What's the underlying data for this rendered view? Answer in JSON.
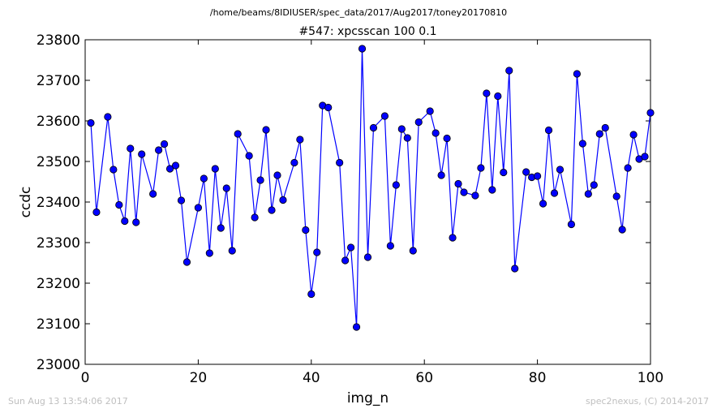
{
  "header": {
    "suptitle": "/home/beams/8IDIUSER/spec_data/2017/Aug2017/toney20170810"
  },
  "footer": {
    "left": "Sun Aug 13 13:54:06 2017",
    "right": "spec2nexus, (C) 2014-2017"
  },
  "colors": {
    "series": "#0000ff",
    "marker_fill": "#0000ff",
    "marker_edge": "#000000",
    "footer_text": "#bfbfbf"
  },
  "chart_data": {
    "type": "line",
    "title": "#547: xpcsscan 100 0.1",
    "xlabel": "img_n",
    "ylabel": "ccdc",
    "xlim": [
      0,
      100
    ],
    "ylim": [
      23000,
      23800
    ],
    "xticks": [
      0,
      20,
      40,
      60,
      80,
      100
    ],
    "yticks": [
      23000,
      23100,
      23200,
      23300,
      23400,
      23500,
      23600,
      23700,
      23800
    ],
    "grid": false,
    "series": [
      {
        "marker": "circle",
        "x": [
          1,
          2,
          4,
          5,
          6,
          7,
          8,
          9,
          10,
          12,
          13,
          14,
          15,
          16,
          17,
          18,
          20,
          21,
          22,
          23,
          24,
          25,
          26,
          27,
          29,
          30,
          31,
          32,
          33,
          34,
          35,
          37,
          38,
          39,
          40,
          41,
          42,
          43,
          45,
          46,
          47,
          48,
          49,
          50,
          51,
          53,
          54,
          55,
          56,
          57,
          58,
          59,
          61,
          62,
          63,
          64,
          65,
          66,
          67,
          69,
          70,
          71,
          72,
          73,
          74,
          75,
          76,
          78,
          79,
          80,
          81,
          82,
          83,
          84,
          86,
          87,
          88,
          89,
          90,
          91,
          92,
          94,
          95,
          96,
          97,
          98,
          99,
          100
        ],
        "y": [
          23595,
          23375,
          23610,
          23480,
          23393,
          23353,
          23532,
          23350,
          23518,
          23420,
          23528,
          23543,
          23482,
          23490,
          23404,
          23252,
          23386,
          23458,
          23274,
          23482,
          23336,
          23434,
          23280,
          23568,
          23514,
          23362,
          23454,
          23578,
          23380,
          23466,
          23405,
          23497,
          23554,
          23331,
          23173,
          23276,
          23638,
          23633,
          23497,
          23256,
          23288,
          23092,
          23778,
          23264,
          23583,
          23612,
          23292,
          23442,
          23580,
          23558,
          23280,
          23597,
          23624,
          23570,
          23466,
          23557,
          23312,
          23445,
          23424,
          23416,
          23484,
          23668,
          23430,
          23661,
          23473,
          23724,
          23236,
          23474,
          23461,
          23464,
          23396,
          23577,
          23422,
          23480,
          23345,
          23716,
          23544,
          23420,
          23442,
          23568,
          23583,
          23414,
          23332,
          23484,
          23566,
          23506,
          23512,
          23620
        ]
      }
    ]
  }
}
